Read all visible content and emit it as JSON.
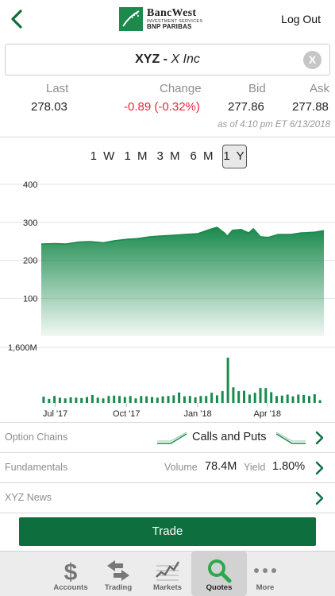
{
  "header": {
    "logo_name": "BancWest",
    "logo_sub": "INVESTMENT SERVICES",
    "logo_sub2": "BNP PARIBAS",
    "logout": "Log Out"
  },
  "search": {
    "symbol": "XYZ",
    "separator": " - ",
    "company": "X Inc",
    "clear_label": "X"
  },
  "quote": {
    "labels": {
      "last": "Last",
      "change": "Change",
      "bid": "Bid",
      "ask": "Ask"
    },
    "values": {
      "last": "278.03",
      "change": "-0.89 (-0.32%)",
      "bid": "277.86",
      "ask": "277.88"
    },
    "as_of": "as of 4:10 pm ET 6/13/2018",
    "negative_color": "#e0283c"
  },
  "ranges": {
    "items": [
      "1 W",
      "1 M",
      "3 M",
      "6 M",
      "1 Y"
    ],
    "selected": "1 Y"
  },
  "chart_data": [
    {
      "type": "area",
      "y_ticks": [
        "400",
        "300",
        "200",
        "100"
      ],
      "ylim": [
        0,
        400
      ],
      "x_tick_labels": [
        "Jul '17",
        "Oct '17",
        "Jan '18",
        "Apr '18"
      ],
      "x_range": [
        "2017-06-13",
        "2018-06-13"
      ],
      "series": [
        {
          "values": [
            [
              "2017-06-13",
              243
            ],
            [
              "2017-07-01",
              244
            ],
            [
              "2017-07-15",
              243
            ],
            [
              "2017-08-01",
              248
            ],
            [
              "2017-08-15",
              249
            ],
            [
              "2017-09-01",
              246
            ],
            [
              "2017-09-15",
              251
            ],
            [
              "2017-10-01",
              255
            ],
            [
              "2017-10-15",
              257
            ],
            [
              "2017-11-01",
              262
            ],
            [
              "2017-11-15",
              264
            ],
            [
              "2017-12-01",
              266
            ],
            [
              "2017-12-15",
              268
            ],
            [
              "2018-01-01",
              270
            ],
            [
              "2018-01-15",
              280
            ],
            [
              "2018-01-26",
              287
            ],
            [
              "2018-02-05",
              271
            ],
            [
              "2018-02-08",
              263
            ],
            [
              "2018-02-15",
              279
            ],
            [
              "2018-02-26",
              281
            ],
            [
              "2018-03-08",
              272
            ],
            [
              "2018-03-14",
              283
            ],
            [
              "2018-03-23",
              262
            ],
            [
              "2018-04-02",
              260
            ],
            [
              "2018-04-15",
              268
            ],
            [
              "2018-05-01",
              268
            ],
            [
              "2018-05-15",
              272
            ],
            [
              "2018-06-01",
              274
            ],
            [
              "2018-06-13",
              278
            ]
          ]
        }
      ],
      "color": "#1a8a4d"
    },
    {
      "type": "bar",
      "y_ticks": [
        "1,600M"
      ],
      "ylim": [
        0,
        1600
      ],
      "unit": "M",
      "series": [
        {
          "values": [
            [
              "2017-06-16",
              180
            ],
            [
              "2017-06-23",
              120
            ],
            [
              "2017-06-30",
              200
            ],
            [
              "2017-07-07",
              150
            ],
            [
              "2017-07-14",
              130
            ],
            [
              "2017-07-21",
              160
            ],
            [
              "2017-07-28",
              150
            ],
            [
              "2017-08-04",
              140
            ],
            [
              "2017-08-11",
              170
            ],
            [
              "2017-08-18",
              230
            ],
            [
              "2017-08-25",
              150
            ],
            [
              "2017-09-01",
              130
            ],
            [
              "2017-09-08",
              200
            ],
            [
              "2017-09-15",
              210
            ],
            [
              "2017-09-22",
              200
            ],
            [
              "2017-09-29",
              170
            ],
            [
              "2017-10-06",
              200
            ],
            [
              "2017-10-13",
              130
            ],
            [
              "2017-10-20",
              200
            ],
            [
              "2017-10-27",
              190
            ],
            [
              "2017-11-03",
              170
            ],
            [
              "2017-11-10",
              150
            ],
            [
              "2017-11-17",
              190
            ],
            [
              "2017-11-24",
              200
            ],
            [
              "2017-12-01",
              220
            ],
            [
              "2017-12-08",
              300
            ],
            [
              "2017-12-15",
              190
            ],
            [
              "2017-12-22",
              200
            ],
            [
              "2017-12-29",
              160
            ],
            [
              "2018-01-05",
              200
            ],
            [
              "2018-01-12",
              200
            ],
            [
              "2018-01-19",
              290
            ],
            [
              "2018-01-26",
              220
            ],
            [
              "2018-02-02",
              340
            ],
            [
              "2018-02-09",
              1300
            ],
            [
              "2018-02-16",
              450
            ],
            [
              "2018-02-23",
              340
            ],
            [
              "2018-03-02",
              350
            ],
            [
              "2018-03-09",
              240
            ],
            [
              "2018-03-16",
              290
            ],
            [
              "2018-03-23",
              430
            ],
            [
              "2018-03-30",
              430
            ],
            [
              "2018-04-06",
              310
            ],
            [
              "2018-04-13",
              200
            ],
            [
              "2018-04-20",
              210
            ],
            [
              "2018-04-27",
              240
            ],
            [
              "2018-05-04",
              190
            ],
            [
              "2018-05-11",
              240
            ],
            [
              "2018-05-18",
              230
            ],
            [
              "2018-05-25",
              200
            ],
            [
              "2018-06-01",
              250
            ],
            [
              "2018-06-08",
              80
            ]
          ]
        }
      ],
      "color": "#1a8a4d"
    }
  ],
  "options": {
    "label": "Option Chains",
    "calls_puts": "Calls and Puts"
  },
  "fundamentals": {
    "label": "Fundamentals",
    "volume_label": "Volume",
    "volume": "78.4M",
    "yield_label": "Yield",
    "yield": "1.80%"
  },
  "news": {
    "label": "XYZ News"
  },
  "trade": {
    "label": "Trade"
  },
  "tabs": [
    {
      "label": "Accounts",
      "icon": "dollar-icon"
    },
    {
      "label": "Trading",
      "icon": "swap-arrows-icon"
    },
    {
      "label": "Markets",
      "icon": "market-chart-icon"
    },
    {
      "label": "Quotes",
      "icon": "search-icon"
    },
    {
      "label": "More",
      "icon": "more-dots-icon"
    }
  ],
  "active_tab": "Quotes",
  "colors": {
    "brand_green": "#1a8a4d",
    "trade_green": "#0f6e3e",
    "chevron_green": "#0f6e3e"
  }
}
